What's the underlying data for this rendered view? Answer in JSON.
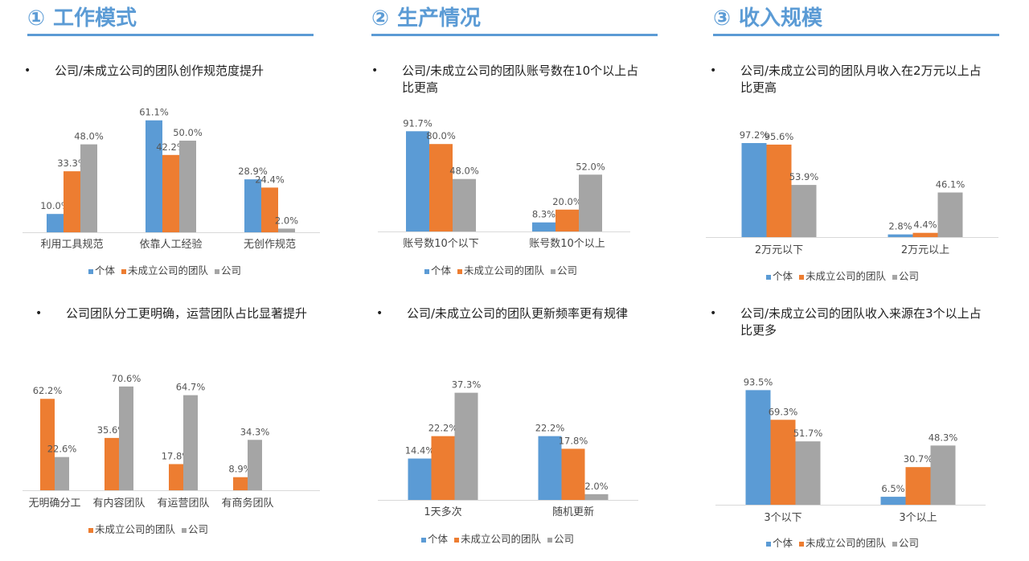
{
  "sections": [
    {
      "num": "①",
      "title": "工作模式"
    },
    {
      "num": "②",
      "title": "生产情况"
    },
    {
      "num": "③",
      "title": "收入规模"
    }
  ],
  "bullet_mark": "•",
  "colors": {
    "个体": "#5b9bd5",
    "未成立公司的团队": "#ed7d31",
    "公司": "#a5a5a5"
  },
  "chart_data": [
    {
      "id": "c1",
      "type": "bar",
      "bullet": "公司/未成立公司的团队创作规范度提升",
      "categories": [
        "利用工具规范",
        "依靠人工经验",
        "无创作规范"
      ],
      "series": [
        {
          "name": "个体",
          "values": [
            10.0,
            61.1,
            28.9
          ],
          "labels": [
            "10.0%",
            "61.1%",
            "28.9%"
          ]
        },
        {
          "name": "未成立公司的团队",
          "values": [
            33.3,
            42.2,
            24.4
          ],
          "labels": [
            "33.3%",
            "42.2%",
            "24.4%"
          ]
        },
        {
          "name": "公司",
          "values": [
            48.0,
            50.0,
            2.0
          ],
          "labels": [
            "48.0%",
            "50.0%",
            "2.0%"
          ]
        }
      ],
      "ylim": [
        0,
        68
      ],
      "legend": "bottom"
    },
    {
      "id": "c2",
      "type": "bar",
      "bullet": "公司/未成立公司的团队账号数在10个以上占比更高",
      "categories": [
        "账号数10个以下",
        "账号数10个以上"
      ],
      "series": [
        {
          "name": "个体",
          "values": [
            91.7,
            8.3
          ],
          "labels": [
            "91.7%",
            "8.3%"
          ]
        },
        {
          "name": "未成立公司的团队",
          "values": [
            80.0,
            20.0
          ],
          "labels": [
            "80.0%",
            "20.0%"
          ]
        },
        {
          "name": "公司",
          "values": [
            48.0,
            52.0
          ],
          "labels": [
            "48.0%",
            "52.0%"
          ]
        }
      ],
      "ylim": [
        0,
        100
      ],
      "legend": "bottom"
    },
    {
      "id": "c3",
      "type": "bar",
      "bullet": "公司/未成立公司的团队月收入在2万元以上占比更高",
      "categories": [
        "2万元以下",
        "2万元以上"
      ],
      "series": [
        {
          "name": "个体",
          "values": [
            97.2,
            2.8
          ],
          "labels": [
            "97.2%",
            "2.8%"
          ]
        },
        {
          "name": "未成立公司的团队",
          "values": [
            95.6,
            4.4
          ],
          "labels": [
            "95.6%",
            "4.4%"
          ]
        },
        {
          "name": "公司",
          "values": [
            53.9,
            46.1
          ],
          "labels": [
            "53.9%",
            "46.1%"
          ]
        }
      ],
      "ylim": [
        0,
        103
      ],
      "legend": "bottom"
    },
    {
      "id": "c4",
      "type": "bar",
      "bullet": "公司团队分工更明确，运营团队占比显著提升",
      "categories": [
        "无明确分工",
        "有内容团队",
        "有运营团队",
        "有商务团队"
      ],
      "series": [
        {
          "name": "未成立公司的团队",
          "values": [
            62.2,
            35.6,
            17.8,
            8.9
          ],
          "labels": [
            "62.2%",
            "35.6%",
            "17.8%",
            "8.9%"
          ]
        },
        {
          "name": "公司",
          "values": [
            22.6,
            70.6,
            64.7,
            34.3
          ],
          "labels": [
            "22.6%",
            "70.6%",
            "64.7%",
            "34.3%"
          ]
        }
      ],
      "ylim": [
        0,
        76
      ],
      "legend": "bottom"
    },
    {
      "id": "c5",
      "type": "bar",
      "bullet": "公司/未成立公司的团队更新频率更有规律",
      "categories": [
        "1天多次",
        "随机更新"
      ],
      "series": [
        {
          "name": "个体",
          "values": [
            14.4,
            22.2
          ],
          "labels": [
            "14.4%",
            "22.2%"
          ]
        },
        {
          "name": "未成立公司的团队",
          "values": [
            22.2,
            17.8
          ],
          "labels": [
            "22.2%",
            "17.8%"
          ]
        },
        {
          "name": "公司",
          "values": [
            37.3,
            2.0
          ],
          "labels": [
            "37.3%",
            "2.0%"
          ]
        }
      ],
      "ylim": [
        0,
        40
      ],
      "legend": "bottom"
    },
    {
      "id": "c6",
      "type": "bar",
      "bullet": "公司/未成立公司的团队收入来源在3个以上占比更多",
      "categories": [
        "3个以下",
        "3个以上"
      ],
      "series": [
        {
          "name": "个体",
          "values": [
            93.5,
            6.5
          ],
          "labels": [
            "93.5%",
            "6.5%"
          ]
        },
        {
          "name": "未成立公司的团队",
          "values": [
            69.3,
            30.7
          ],
          "labels": [
            "69.3%",
            "30.7%"
          ]
        },
        {
          "name": "公司",
          "values": [
            51.7,
            48.3
          ],
          "labels": [
            "51.7%",
            "48.3%"
          ]
        }
      ],
      "ylim": [
        0,
        99
      ],
      "legend": "bottom"
    }
  ]
}
